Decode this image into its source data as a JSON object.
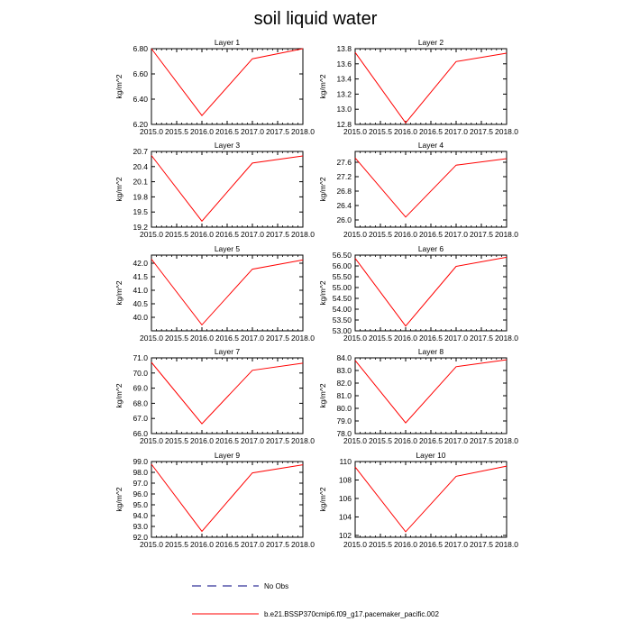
{
  "title": "soil liquid water",
  "colors": {
    "series": "#ff0000",
    "obs": "#000080",
    "axis": "#000000"
  },
  "chart_data": [
    {
      "type": "line",
      "title": "Layer 1",
      "ylabel": "kg/m^2",
      "x": [
        2015.0,
        2016.0,
        2017.0,
        2018.0
      ],
      "xlim": [
        2015.0,
        2018.0
      ],
      "xticks": [
        "2015.0",
        "2015.5",
        "2016.0",
        "2016.5",
        "2017.0",
        "2017.5",
        "2018.0"
      ],
      "ylim": [
        6.2,
        6.8
      ],
      "yticks": [
        "6.20",
        "6.40",
        "6.60",
        "6.80"
      ],
      "series": [
        {
          "name": "b.e21.BSSP370cmip6.f09_g17.pacemaker_pacific.002",
          "values": [
            6.8,
            6.27,
            6.72,
            6.8
          ]
        }
      ]
    },
    {
      "type": "line",
      "title": "Layer 2",
      "ylabel": "kg/m^2",
      "x": [
        2015.0,
        2016.0,
        2017.0,
        2018.0
      ],
      "xlim": [
        2015.0,
        2018.0
      ],
      "xticks": [
        "2015.0",
        "2015.5",
        "2016.0",
        "2016.5",
        "2017.0",
        "2017.5",
        "2018.0"
      ],
      "ylim": [
        12.8,
        13.8
      ],
      "yticks": [
        "12.8",
        "13.0",
        "13.2",
        "13.4",
        "13.6",
        "13.8"
      ],
      "series": [
        {
          "name": "b.e21.BSSP370cmip6.f09_g17.pacemaker_pacific.002",
          "values": [
            13.75,
            12.82,
            13.63,
            13.74
          ]
        }
      ]
    },
    {
      "type": "line",
      "title": "Layer 3",
      "ylabel": "kg/m^2",
      "x": [
        2015.0,
        2016.0,
        2017.0,
        2018.0
      ],
      "xlim": [
        2015.0,
        2018.0
      ],
      "xticks": [
        "2015.0",
        "2015.5",
        "2016.0",
        "2016.5",
        "2017.0",
        "2017.5",
        "2018.0"
      ],
      "ylim": [
        19.2,
        20.7
      ],
      "yticks": [
        "19.2",
        "19.5",
        "19.8",
        "20.1",
        "20.4",
        "20.7"
      ],
      "series": [
        {
          "name": "b.e21.BSSP370cmip6.f09_g17.pacemaker_pacific.002",
          "values": [
            20.62,
            19.32,
            20.47,
            20.61
          ]
        }
      ]
    },
    {
      "type": "line",
      "title": "Layer 4",
      "ylabel": "kg/m^2",
      "x": [
        2015.0,
        2016.0,
        2017.0,
        2018.0
      ],
      "xlim": [
        2015.0,
        2018.0
      ],
      "xticks": [
        "2015.0",
        "2015.5",
        "2016.0",
        "2016.5",
        "2017.0",
        "2017.5",
        "2018.0"
      ],
      "ylim": [
        25.8,
        27.9
      ],
      "yticks": [
        "26.0",
        "26.4",
        "26.8",
        "27.2",
        "27.6"
      ],
      "series": [
        {
          "name": "b.e21.BSSP370cmip6.f09_g17.pacemaker_pacific.002",
          "values": [
            27.72,
            26.08,
            27.52,
            27.7
          ]
        }
      ]
    },
    {
      "type": "line",
      "title": "Layer 5",
      "ylabel": "kg/m^2",
      "x": [
        2015.0,
        2016.0,
        2017.0,
        2018.0
      ],
      "xlim": [
        2015.0,
        2018.0
      ],
      "xticks": [
        "2015.0",
        "2015.5",
        "2016.0",
        "2016.5",
        "2017.0",
        "2017.5",
        "2018.0"
      ],
      "ylim": [
        39.5,
        42.3
      ],
      "yticks": [
        "40.0",
        "40.5",
        "41.0",
        "41.5",
        "42.0"
      ],
      "series": [
        {
          "name": "b.e21.BSSP370cmip6.f09_g17.pacemaker_pacific.002",
          "values": [
            42.15,
            39.72,
            41.78,
            42.12
          ]
        }
      ]
    },
    {
      "type": "line",
      "title": "Layer 6",
      "ylabel": "kg/m^2",
      "x": [
        2015.0,
        2016.0,
        2017.0,
        2018.0
      ],
      "xlim": [
        2015.0,
        2018.0
      ],
      "xticks": [
        "2015.0",
        "2015.5",
        "2016.0",
        "2016.5",
        "2017.0",
        "2017.5",
        "2018.0"
      ],
      "ylim": [
        53.0,
        56.5
      ],
      "yticks": [
        "53.00",
        "53.50",
        "54.00",
        "54.50",
        "55.00",
        "55.50",
        "56.00",
        "56.50"
      ],
      "series": [
        {
          "name": "b.e21.BSSP370cmip6.f09_g17.pacemaker_pacific.002",
          "values": [
            56.35,
            53.22,
            55.98,
            56.4
          ]
        }
      ]
    },
    {
      "type": "line",
      "title": "Layer 7",
      "ylabel": "kg/m^2",
      "x": [
        2015.0,
        2016.0,
        2017.0,
        2018.0
      ],
      "xlim": [
        2015.0,
        2018.0
      ],
      "xticks": [
        "2015.0",
        "2015.5",
        "2016.0",
        "2016.5",
        "2017.0",
        "2017.5",
        "2018.0"
      ],
      "ylim": [
        66.0,
        71.0
      ],
      "yticks": [
        "66.0",
        "67.0",
        "68.0",
        "69.0",
        "70.0",
        "71.0"
      ],
      "series": [
        {
          "name": "b.e21.BSSP370cmip6.f09_g17.pacemaker_pacific.002",
          "values": [
            70.7,
            66.65,
            70.18,
            70.65
          ]
        }
      ]
    },
    {
      "type": "line",
      "title": "Layer 8",
      "ylabel": "kg/m^2",
      "x": [
        2015.0,
        2016.0,
        2017.0,
        2018.0
      ],
      "xlim": [
        2015.0,
        2018.0
      ],
      "xticks": [
        "2015.0",
        "2015.5",
        "2016.0",
        "2016.5",
        "2017.0",
        "2017.5",
        "2018.0"
      ],
      "ylim": [
        78.0,
        84.0
      ],
      "yticks": [
        "78.0",
        "79.0",
        "80.0",
        "81.0",
        "82.0",
        "83.0",
        "84.0"
      ],
      "series": [
        {
          "name": "b.e21.BSSP370cmip6.f09_g17.pacemaker_pacific.002",
          "values": [
            83.8,
            78.85,
            83.3,
            83.85
          ]
        }
      ]
    },
    {
      "type": "line",
      "title": "Layer 9",
      "ylabel": "kg/m^2",
      "x": [
        2015.0,
        2016.0,
        2017.0,
        2018.0
      ],
      "xlim": [
        2015.0,
        2018.0
      ],
      "xticks": [
        "2015.0",
        "2015.5",
        "2016.0",
        "2016.5",
        "2017.0",
        "2017.5",
        "2018.0"
      ],
      "ylim": [
        92.0,
        99.0
      ],
      "yticks": [
        "92.0",
        "93.0",
        "94.0",
        "95.0",
        "96.0",
        "97.0",
        "98.0",
        "99.0"
      ],
      "series": [
        {
          "name": "b.e21.BSSP370cmip6.f09_g17.pacemaker_pacific.002",
          "values": [
            98.75,
            92.55,
            97.95,
            98.7
          ]
        }
      ]
    },
    {
      "type": "line",
      "title": "Layer 10",
      "ylabel": "kg/m^2",
      "x": [
        2015.0,
        2016.0,
        2017.0,
        2018.0
      ],
      "xlim": [
        2015.0,
        2018.0
      ],
      "xticks": [
        "2015.0",
        "2015.5",
        "2016.0",
        "2016.5",
        "2017.0",
        "2017.5",
        "2018.0"
      ],
      "ylim": [
        101.8,
        110.0
      ],
      "yticks": [
        "102",
        "104",
        "106",
        "108",
        "110"
      ],
      "series": [
        {
          "name": "b.e21.BSSP370cmip6.f09_g17.pacemaker_pacific.002",
          "values": [
            109.4,
            102.4,
            108.4,
            109.5
          ]
        }
      ]
    }
  ],
  "legend": [
    {
      "label": "No Obs",
      "style": "dashed",
      "color": "#000080"
    },
    {
      "label": "b.e21.BSSP370cmip6.f09_g17.pacemaker_pacific.002",
      "style": "solid",
      "color": "#ff0000"
    }
  ]
}
